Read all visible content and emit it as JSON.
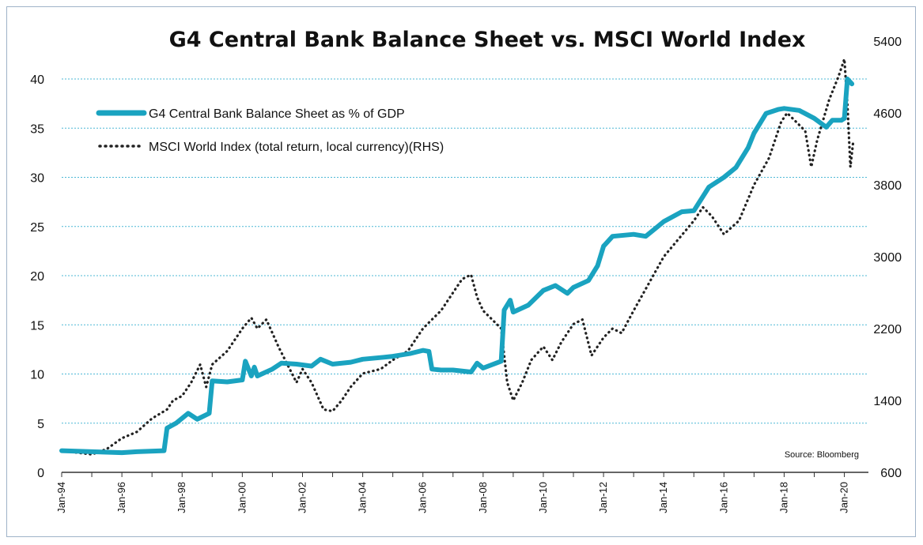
{
  "chart_data": {
    "type": "line",
    "title": "G4 Central Bank Balance Sheet vs. MSCI World Index",
    "source": "Source: Bloomberg",
    "grid": true,
    "legend_position": "top-left",
    "x_ticks": [
      "Jan-94",
      "Jan-96",
      "Jan-98",
      "Jan-00",
      "Jan-02",
      "Jan-04",
      "Jan-06",
      "Jan-08",
      "Jan-10",
      "Jan-12",
      "Jan-14",
      "Jan-16",
      "Jan-18",
      "Jan-20"
    ],
    "y_left": {
      "ticks": [
        "0",
        "5",
        "10",
        "15",
        "20",
        "25",
        "30",
        "35",
        "40"
      ],
      "range": [
        0,
        40
      ]
    },
    "y_right": {
      "ticks": [
        "600",
        "1400",
        "2200",
        "3000",
        "3800",
        "4600",
        "5400"
      ],
      "range": [
        600,
        5400
      ]
    },
    "colors": {
      "balance": "#1aa3c0",
      "msci": "#222222",
      "grid": "#4db8d6"
    },
    "series": [
      {
        "name": "G4 Central Bank Balance Sheet as % of GDP",
        "axis": "left",
        "style": "solid",
        "points": [
          [
            1994.0,
            2.2
          ],
          [
            1995.0,
            2.1
          ],
          [
            1996.0,
            2.0
          ],
          [
            1996.5,
            2.1
          ],
          [
            1997.4,
            2.2
          ],
          [
            1997.5,
            4.5
          ],
          [
            1997.8,
            5.0
          ],
          [
            1998.2,
            6.0
          ],
          [
            1998.5,
            5.4
          ],
          [
            1998.9,
            6.0
          ],
          [
            1999.0,
            9.3
          ],
          [
            1999.5,
            9.2
          ],
          [
            2000.0,
            9.4
          ],
          [
            2000.1,
            11.3
          ],
          [
            2000.3,
            9.8
          ],
          [
            2000.4,
            10.7
          ],
          [
            2000.5,
            9.8
          ],
          [
            2001.0,
            10.5
          ],
          [
            2001.3,
            11.1
          ],
          [
            2001.8,
            11.0
          ],
          [
            2002.3,
            10.8
          ],
          [
            2002.6,
            11.5
          ],
          [
            2003.0,
            11.0
          ],
          [
            2003.6,
            11.2
          ],
          [
            2004.0,
            11.5
          ],
          [
            2004.7,
            11.7
          ],
          [
            2005.0,
            11.8
          ],
          [
            2005.6,
            12.1
          ],
          [
            2006.0,
            12.4
          ],
          [
            2006.2,
            12.3
          ],
          [
            2006.3,
            10.5
          ],
          [
            2006.6,
            10.4
          ],
          [
            2007.0,
            10.4
          ],
          [
            2007.6,
            10.2
          ],
          [
            2007.8,
            11.1
          ],
          [
            2008.0,
            10.6
          ],
          [
            2008.6,
            11.3
          ],
          [
            2008.7,
            16.5
          ],
          [
            2008.9,
            17.5
          ],
          [
            2009.0,
            16.3
          ],
          [
            2009.5,
            17.0
          ],
          [
            2010.0,
            18.5
          ],
          [
            2010.4,
            19.0
          ],
          [
            2010.8,
            18.2
          ],
          [
            2011.0,
            18.8
          ],
          [
            2011.5,
            19.5
          ],
          [
            2011.8,
            21.0
          ],
          [
            2012.0,
            23.0
          ],
          [
            2012.3,
            24.0
          ],
          [
            2013.0,
            24.2
          ],
          [
            2013.4,
            24.0
          ],
          [
            2013.8,
            25.0
          ],
          [
            2014.0,
            25.5
          ],
          [
            2014.6,
            26.5
          ],
          [
            2015.0,
            26.6
          ],
          [
            2015.5,
            29.0
          ],
          [
            2016.0,
            30.0
          ],
          [
            2016.4,
            31.0
          ],
          [
            2016.8,
            33.0
          ],
          [
            2017.0,
            34.5
          ],
          [
            2017.4,
            36.5
          ],
          [
            2017.8,
            36.9
          ],
          [
            2018.0,
            37.0
          ],
          [
            2018.5,
            36.8
          ],
          [
            2019.0,
            36.0
          ],
          [
            2019.4,
            35.1
          ],
          [
            2019.6,
            35.8
          ],
          [
            2019.9,
            35.8
          ],
          [
            2020.0,
            36.0
          ],
          [
            2020.1,
            40.0
          ],
          [
            2020.25,
            39.5
          ]
        ]
      },
      {
        "name": "MSCI World Index (total return, local currency)(RHS)",
        "axis": "right",
        "style": "dotted",
        "points": [
          [
            1994.0,
            840
          ],
          [
            1994.5,
            820
          ],
          [
            1995.0,
            800
          ],
          [
            1995.5,
            860
          ],
          [
            1996.0,
            980
          ],
          [
            1996.5,
            1050
          ],
          [
            1997.0,
            1200
          ],
          [
            1997.5,
            1300
          ],
          [
            1997.7,
            1400
          ],
          [
            1998.0,
            1450
          ],
          [
            1998.3,
            1600
          ],
          [
            1998.6,
            1800
          ],
          [
            1998.8,
            1550
          ],
          [
            1999.0,
            1800
          ],
          [
            1999.5,
            1950
          ],
          [
            2000.0,
            2200
          ],
          [
            2000.3,
            2320
          ],
          [
            2000.5,
            2200
          ],
          [
            2000.8,
            2300
          ],
          [
            2001.2,
            2000
          ],
          [
            2001.5,
            1800
          ],
          [
            2001.8,
            1600
          ],
          [
            2002.0,
            1750
          ],
          [
            2002.3,
            1600
          ],
          [
            2002.7,
            1300
          ],
          [
            2003.0,
            1280
          ],
          [
            2003.3,
            1400
          ],
          [
            2003.6,
            1550
          ],
          [
            2004.0,
            1700
          ],
          [
            2004.6,
            1750
          ],
          [
            2005.0,
            1850
          ],
          [
            2005.5,
            1950
          ],
          [
            2006.0,
            2200
          ],
          [
            2006.3,
            2300
          ],
          [
            2006.6,
            2400
          ],
          [
            2007.0,
            2600
          ],
          [
            2007.3,
            2750
          ],
          [
            2007.6,
            2800
          ],
          [
            2007.8,
            2550
          ],
          [
            2008.0,
            2400
          ],
          [
            2008.3,
            2300
          ],
          [
            2008.6,
            2200
          ],
          [
            2008.8,
            1600
          ],
          [
            2009.0,
            1400
          ],
          [
            2009.3,
            1600
          ],
          [
            2009.6,
            1850
          ],
          [
            2010.0,
            2000
          ],
          [
            2010.3,
            1850
          ],
          [
            2010.6,
            2050
          ],
          [
            2011.0,
            2250
          ],
          [
            2011.3,
            2300
          ],
          [
            2011.6,
            1900
          ],
          [
            2012.0,
            2100
          ],
          [
            2012.3,
            2200
          ],
          [
            2012.6,
            2150
          ],
          [
            2013.0,
            2400
          ],
          [
            2013.5,
            2700
          ],
          [
            2014.0,
            3000
          ],
          [
            2014.5,
            3200
          ],
          [
            2015.0,
            3400
          ],
          [
            2015.3,
            3550
          ],
          [
            2015.6,
            3450
          ],
          [
            2016.0,
            3250
          ],
          [
            2016.5,
            3400
          ],
          [
            2017.0,
            3800
          ],
          [
            2017.5,
            4100
          ],
          [
            2017.9,
            4500
          ],
          [
            2018.1,
            4600
          ],
          [
            2018.4,
            4500
          ],
          [
            2018.7,
            4400
          ],
          [
            2018.9,
            4000
          ],
          [
            2019.1,
            4300
          ],
          [
            2019.5,
            4750
          ],
          [
            2019.8,
            5000
          ],
          [
            2020.0,
            5200
          ],
          [
            2020.1,
            4700
          ],
          [
            2020.2,
            4000
          ],
          [
            2020.3,
            4300
          ]
        ]
      }
    ]
  }
}
